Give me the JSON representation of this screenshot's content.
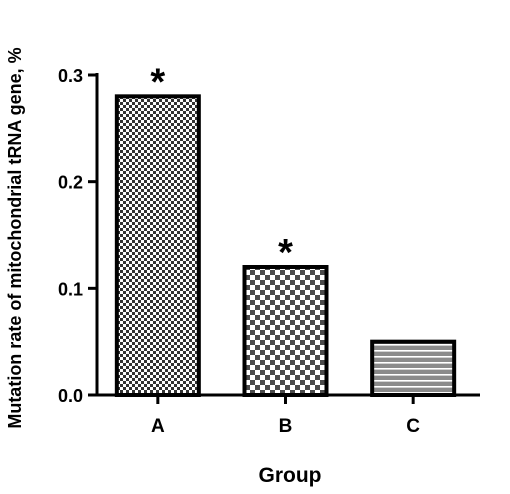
{
  "chart_data": {
    "type": "bar",
    "title": "",
    "xlabel": "Group",
    "ylabel": "Mutation rate of mitochondrial tRNA gene, %",
    "categories": [
      "A",
      "B",
      "C"
    ],
    "values": [
      0.28,
      0.12,
      0.05
    ],
    "ylim": [
      0,
      0.3
    ],
    "yticks": [
      "0.0",
      "0.1",
      "0.2",
      "0.3"
    ],
    "annotations": [
      "*",
      "*",
      ""
    ],
    "patterns": [
      "fine-checker",
      "coarse-checker",
      "horizontal-stripes"
    ],
    "grid": false,
    "legend": "none"
  }
}
